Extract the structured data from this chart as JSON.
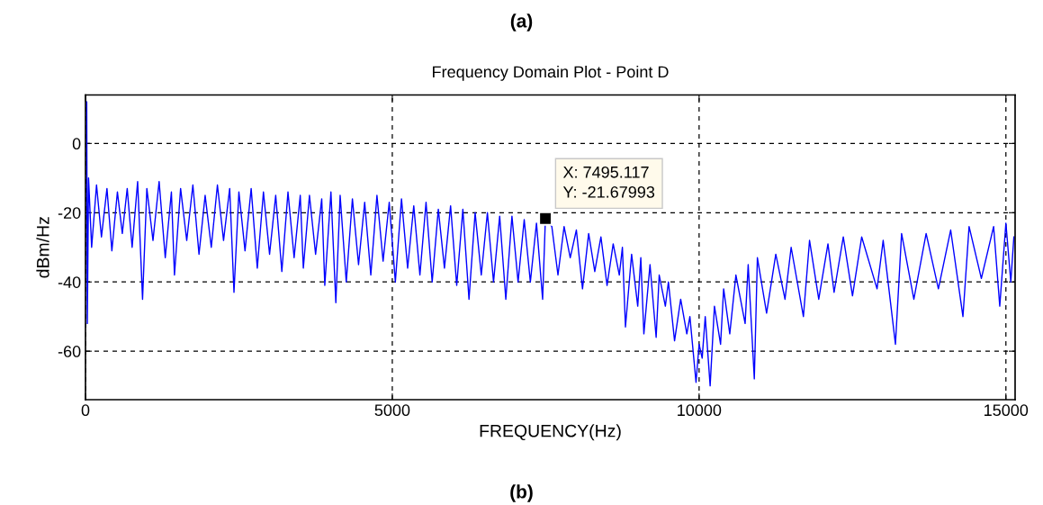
{
  "chart_data": {
    "type": "line",
    "title": "Frequency Domain Plot - Point D",
    "xlabel": "FREQUENCY(Hz)",
    "ylabel": "dBm/Hz",
    "xlim": [
      0,
      15150
    ],
    "ylim": [
      -74,
      14
    ],
    "xticks": [
      0,
      5000,
      10000,
      15000
    ],
    "yticks": [
      -60,
      -40,
      -20,
      0
    ],
    "grid": true,
    "line_style": "solid",
    "marker": "none",
    "annotations": [
      "(a)",
      "(b)",
      {
        "text": "X: 7495.117\nY: -21.67993",
        "x": 7495.117,
        "y": -21.67993
      }
    ],
    "series": [
      {
        "color": "#0000ff",
        "x": [
          20,
          30,
          50,
          100,
          180,
          260,
          350,
          430,
          520,
          600,
          680,
          760,
          850,
          930,
          1000,
          1100,
          1200,
          1300,
          1400,
          1450,
          1550,
          1650,
          1750,
          1850,
          1950,
          2050,
          2150,
          2250,
          2350,
          2420,
          2500,
          2600,
          2700,
          2800,
          2900,
          3000,
          3100,
          3200,
          3300,
          3400,
          3500,
          3550,
          3650,
          3750,
          3850,
          3900,
          4000,
          4080,
          4150,
          4250,
          4350,
          4450,
          4550,
          4650,
          4750,
          4850,
          4950,
          5050,
          5150,
          5250,
          5350,
          5450,
          5550,
          5650,
          5750,
          5850,
          5950,
          6050,
          6150,
          6250,
          6350,
          6450,
          6550,
          6650,
          6750,
          6850,
          6950,
          7050,
          7150,
          7250,
          7350,
          7450,
          7495.117,
          7600,
          7700,
          7800,
          7900,
          8000,
          8100,
          8200,
          8300,
          8400,
          8500,
          8600,
          8700,
          8750,
          8800,
          8900,
          9000,
          9050,
          9100,
          9200,
          9300,
          9350,
          9450,
          9500,
          9600,
          9700,
          9800,
          9850,
          9950,
          10000,
          10050,
          10100,
          10180,
          10250,
          10350,
          10400,
          10500,
          10600,
          10750,
          10800,
          10900,
          10950,
          11100,
          11250,
          11400,
          11500,
          11700,
          11800,
          11950,
          12100,
          12200,
          12350,
          12500,
          12650,
          12900,
          13000,
          13200,
          13300,
          13500,
          13700,
          13900,
          14100,
          14300,
          14400,
          14600,
          14800,
          14900,
          15000,
          15080,
          15130
        ],
        "values": [
          12,
          -52,
          -10,
          -30,
          -12,
          -27,
          -13,
          -31,
          -14,
          -26,
          -13,
          -30,
          -11,
          -45,
          -13,
          -28,
          -11,
          -33,
          -14,
          -38,
          -13,
          -28,
          -12,
          -32,
          -15,
          -30,
          -12,
          -28,
          -13,
          -43,
          -14,
          -31,
          -13,
          -36,
          -14,
          -32,
          -15,
          -37,
          -14,
          -33,
          -15,
          -36,
          -15,
          -32,
          -16,
          -41,
          -14,
          -46,
          -15,
          -40,
          -16,
          -35,
          -17,
          -38,
          -15,
          -34,
          -17,
          -40,
          -16,
          -36,
          -18,
          -38,
          -17,
          -40,
          -19,
          -36,
          -18,
          -41,
          -19,
          -45,
          -20,
          -38,
          -20,
          -40,
          -21,
          -45,
          -21,
          -40,
          -22,
          -40,
          -23,
          -45,
          -21.7,
          -24,
          -38,
          -24,
          -33,
          -25,
          -42,
          -26,
          -37,
          -27,
          -41,
          -29,
          -38,
          -30,
          -53,
          -32,
          -47,
          -33,
          -55,
          -35,
          -56,
          -38,
          -47,
          -40,
          -57,
          -45,
          -55,
          -50,
          -69,
          -58,
          -62,
          -50,
          -70,
          -47,
          -58,
          -42,
          -55,
          -38,
          -52,
          -35,
          -68,
          -33,
          -49,
          -32,
          -45,
          -30,
          -50,
          -28,
          -45,
          -29,
          -43,
          -27,
          -44,
          -27,
          -42,
          -28,
          -58,
          -26,
          -45,
          -26,
          -42,
          -25,
          -50,
          -24,
          -39,
          -24,
          -47,
          -23,
          -40,
          -27
        ]
      }
    ]
  }
}
